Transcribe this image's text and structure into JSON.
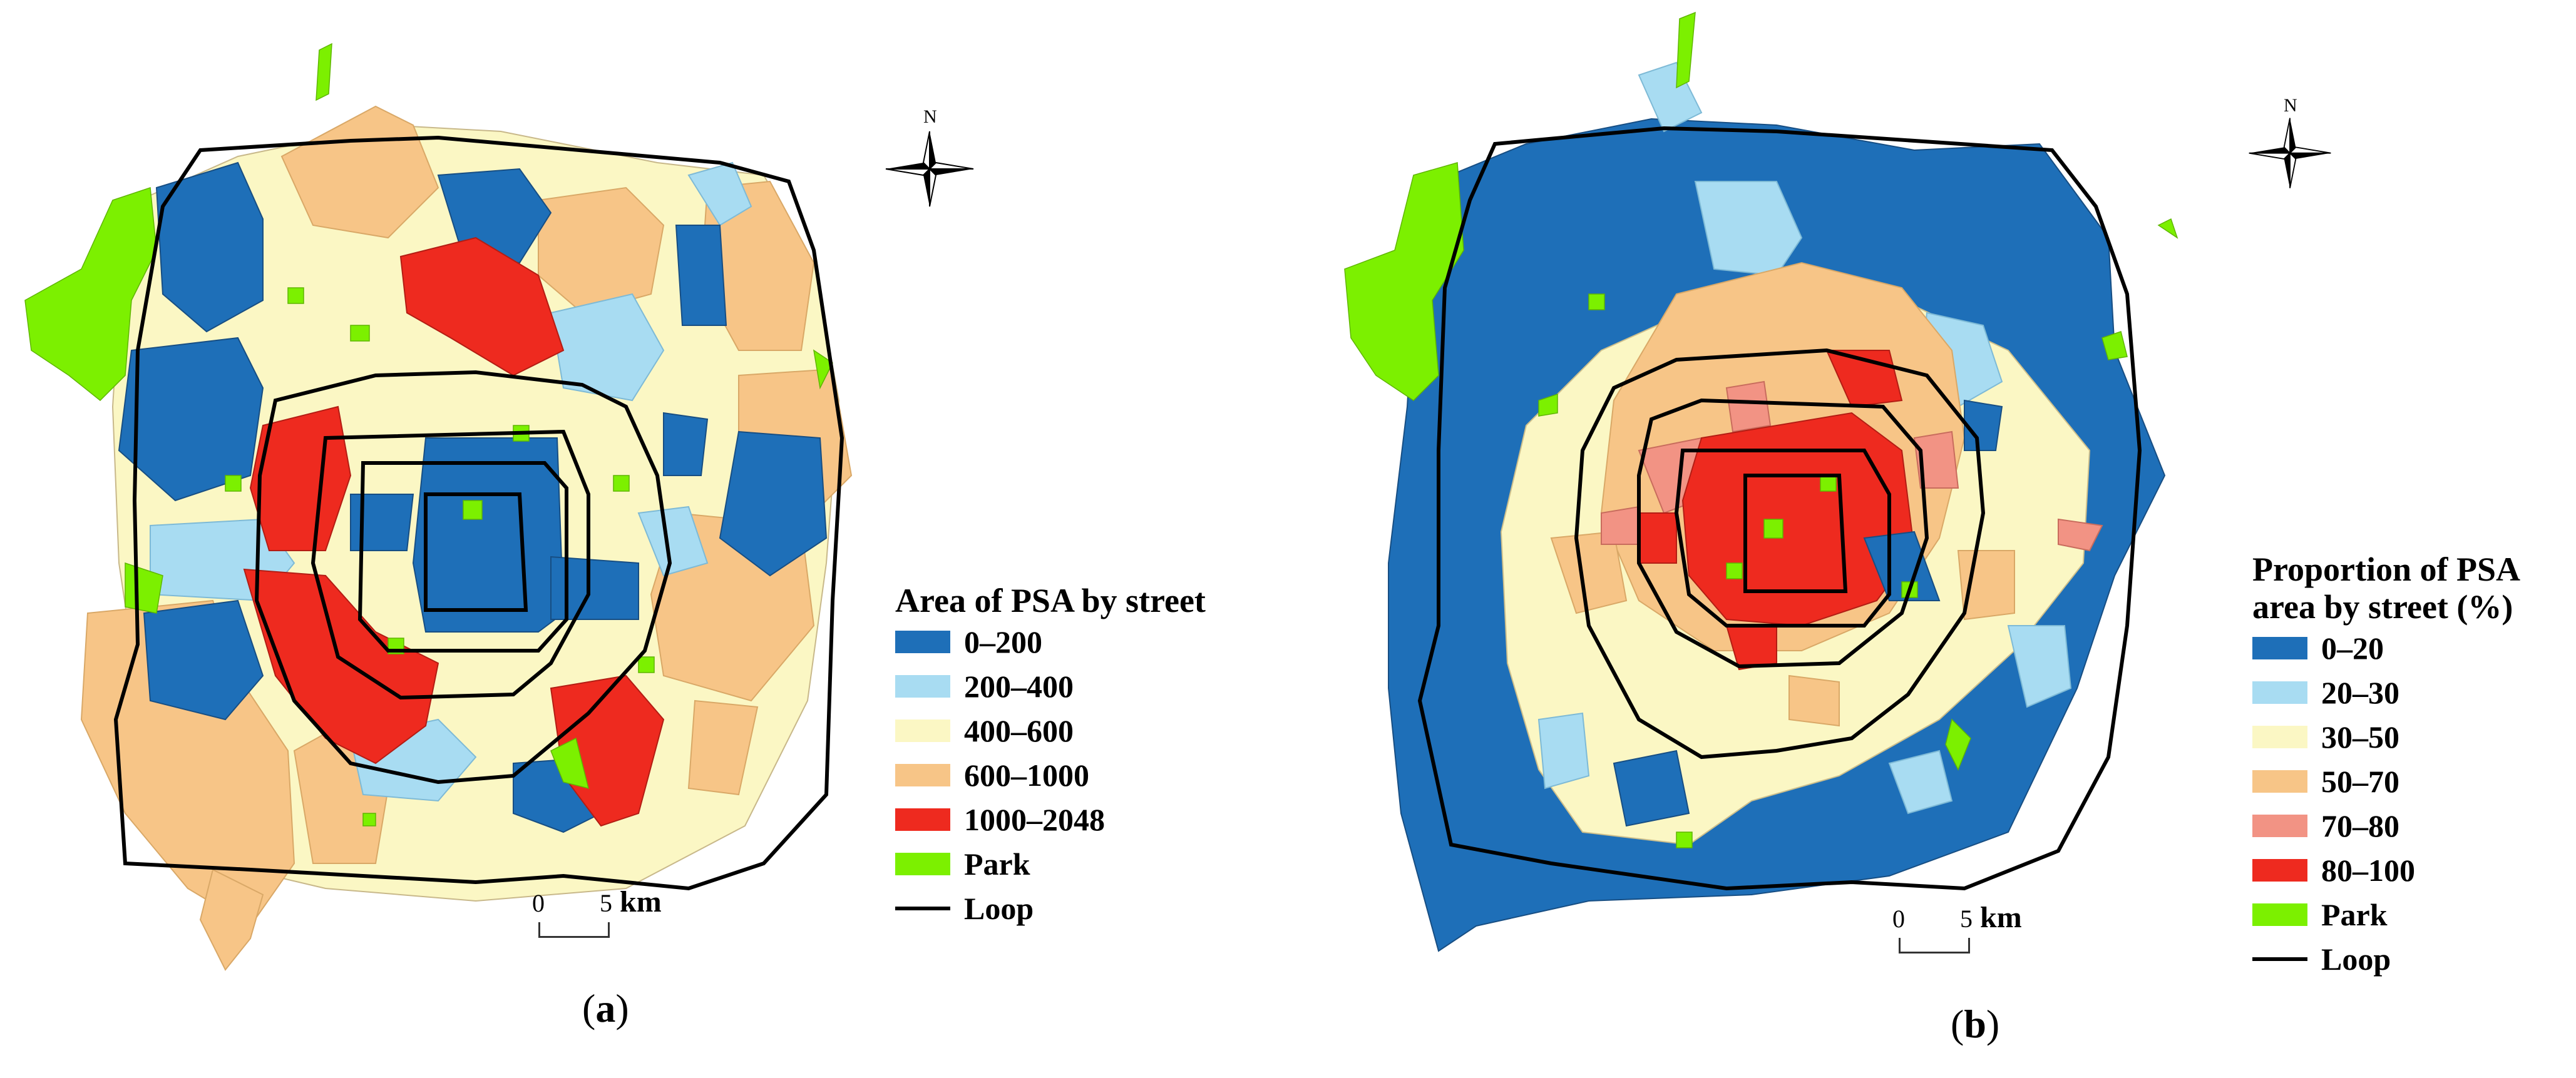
{
  "colors": {
    "c0": "#1e6fb8",
    "c1": "#a8dcf2",
    "c2": "#fbf7c4",
    "c3": "#f7c587",
    "c4": "#f29384",
    "c5": "#ee2a1f",
    "park": "#7cf000",
    "loop": "#000000"
  },
  "panels": [
    {
      "caption_open": "(",
      "caption_letter": "a",
      "caption_close": ")",
      "north_label": "N",
      "legend": {
        "title_lines": [
          "Area of PSA by street"
        ],
        "items": [
          {
            "label": "0–200",
            "color": "#1e6fb8"
          },
          {
            "label": "200–400",
            "color": "#a8dcf2"
          },
          {
            "label": "400–600",
            "color": "#fbf7c4"
          },
          {
            "label": "600–1000",
            "color": "#f7c587"
          },
          {
            "label": "1000–2048",
            "color": "#ee2a1f"
          },
          {
            "label": "Park",
            "color": "#7cf000"
          }
        ],
        "loop_label": "Loop"
      },
      "scale": {
        "tick0": "0",
        "tick1": "5",
        "unit": "km"
      }
    },
    {
      "caption_open": "(",
      "caption_letter": "b",
      "caption_close": ")",
      "north_label": "N",
      "legend": {
        "title_lines": [
          "Proportion of PSA",
          "area by street (%)"
        ],
        "items": [
          {
            "label": "0–20",
            "color": "#1e6fb8"
          },
          {
            "label": "20–30",
            "color": "#a8dcf2"
          },
          {
            "label": "30–50",
            "color": "#fbf7c4"
          },
          {
            "label": "50–70",
            "color": "#f7c587"
          },
          {
            "label": "70–80",
            "color": "#f29384"
          },
          {
            "label": "80–100",
            "color": "#ee2a1f"
          },
          {
            "label": "Park",
            "color": "#7cf000"
          }
        ],
        "loop_label": "Loop"
      },
      "scale": {
        "tick0": "0",
        "tick1": "5",
        "unit": "km"
      }
    }
  ]
}
